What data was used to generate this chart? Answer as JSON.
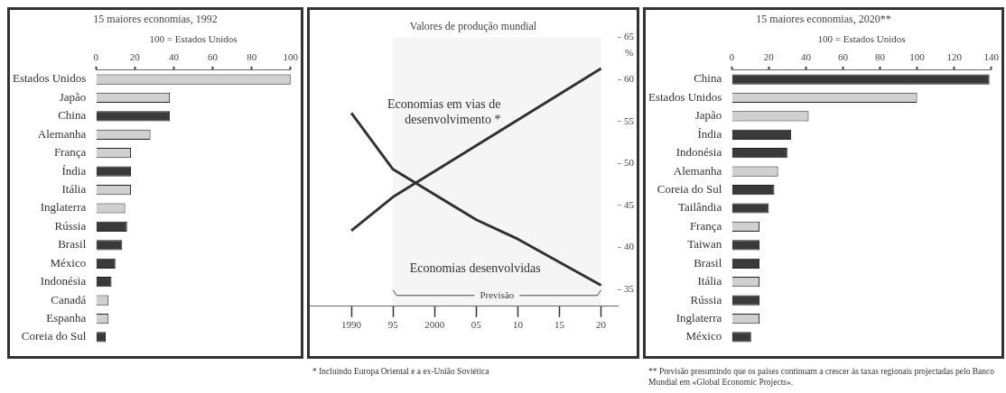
{
  "chart_data": [
    {
      "type": "bar",
      "orientation": "horizontal",
      "title": "15 maiores economias, 1992",
      "xlabel": "100 = Estados Unidos",
      "categories": [
        "Estados Unidos",
        "Japão",
        "China",
        "Alemanha",
        "França",
        "Índia",
        "Itália",
        "Inglaterra",
        "Rússia",
        "Brasil",
        "México",
        "Indonésia",
        "Canadá",
        "Espanha",
        "Coreia do Sul"
      ],
      "values": [
        100,
        38,
        38,
        28,
        18,
        18,
        18,
        15,
        16,
        13.5,
        10,
        8,
        6.5,
        6.5,
        5
      ],
      "colors": [
        "#d0d0d0",
        "#d0d0d0",
        "#3a3a3a",
        "#d0d0d0",
        "#d0d0d0",
        "#3a3a3a",
        "#d0d0d0",
        "#d0d0d0",
        "#3a3a3a",
        "#3a3a3a",
        "#3a3a3a",
        "#3a3a3a",
        "#d0d0d0",
        "#d0d0d0",
        "#3a3a3a"
      ],
      "xlim": [
        0,
        100
      ],
      "xticks": [
        0,
        20,
        40,
        60,
        80,
        100
      ],
      "legend": false,
      "grid": false
    },
    {
      "type": "line",
      "title": "Valores de produção mundial",
      "ylabel": "%",
      "series": [
        {
          "name": "Economias em vias de desenvolvimento *",
          "color": "#333333",
          "x": [
            1990,
            1995,
            2020
          ],
          "values": [
            42,
            46,
            61.3
          ]
        },
        {
          "name": "Economias desenvolvidas",
          "color": "#333333",
          "x": [
            1990,
            1995,
            2005,
            2010,
            2020
          ],
          "values": [
            56,
            49.3,
            43.3,
            41,
            35.5
          ]
        }
      ],
      "xlim": [
        1985,
        2022
      ],
      "xticks": [
        {
          "value": 1990,
          "label": "1990"
        },
        {
          "value": 1995,
          "label": "95"
        },
        {
          "value": 2000,
          "label": "2000"
        },
        {
          "value": 2005,
          "label": "05"
        },
        {
          "value": 2010,
          "label": "10"
        },
        {
          "value": 2015,
          "label": "15"
        },
        {
          "value": 2020,
          "label": "20"
        }
      ],
      "ylim": [
        33,
        65
      ],
      "yticks": [
        35,
        40,
        45,
        50,
        55,
        60,
        65
      ],
      "bands": [
        {
          "axis": "x",
          "from": 1995,
          "to": 2020,
          "label": "Previsão"
        }
      ],
      "annotations": [
        "* Incluindo Europa Oriental e a ex-União Soviética"
      ],
      "legend": false,
      "grid": false
    },
    {
      "type": "bar",
      "orientation": "horizontal",
      "title": "15 maiores economias, 2020**",
      "xlabel": "100 = Estados Unidos",
      "categories": [
        "China",
        "Estados Unidos",
        "Japão",
        "Índia",
        "Indonésia",
        "Alemanha",
        "Coreia do Sul",
        "Tailândia",
        "França",
        "Taiwan",
        "Brasil",
        "Itália",
        "Rússia",
        "Inglaterra",
        "México"
      ],
      "values": [
        139,
        100,
        41.5,
        32,
        30,
        25,
        23,
        20,
        15,
        15,
        15,
        15,
        15,
        15,
        10.5
      ],
      "colors": [
        "#3a3a3a",
        "#d0d0d0",
        "#d0d0d0",
        "#3a3a3a",
        "#3a3a3a",
        "#d0d0d0",
        "#3a3a3a",
        "#3a3a3a",
        "#d0d0d0",
        "#3a3a3a",
        "#3a3a3a",
        "#d0d0d0",
        "#3a3a3a",
        "#d0d0d0",
        "#3a3a3a"
      ],
      "xlim": [
        0,
        140
      ],
      "xticks": [
        0,
        20,
        40,
        60,
        80,
        100,
        120,
        140
      ],
      "annotations": [
        "** Previsão presumindo que os países continuam a crescer às taxas regionais projectadas pelo Banco Mundial em «Global Economic Projects»."
      ],
      "legend": false,
      "grid": false
    }
  ]
}
